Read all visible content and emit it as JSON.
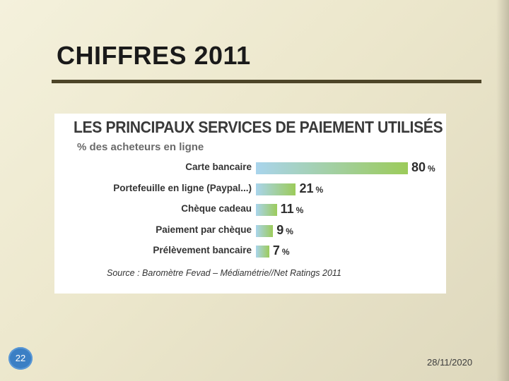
{
  "slide": {
    "title": "CHIFFRES 2011",
    "page_number": "22",
    "date": "28/11/2020"
  },
  "chart_data": {
    "type": "bar",
    "orientation": "horizontal",
    "title": "LES PRINCIPAUX SERVICES DE PAIEMENT UTILISÉS",
    "subtitle": "% des acheteurs en ligne",
    "source": "Source : Baromètre Fevad – Médiamétrie//Net Ratings 2011",
    "categories": [
      "Carte bancaire",
      "Portefeuille en ligne (Paypal...)",
      "Chèque cadeau",
      "Paiement par chèque",
      "Prélèvement bancaire"
    ],
    "values": [
      80,
      21,
      11,
      9,
      7
    ],
    "unit": "%",
    "grid": false,
    "xlim": [
      0,
      80
    ],
    "colors": [
      "#a9d4ec",
      "#9ccb5a"
    ]
  }
}
